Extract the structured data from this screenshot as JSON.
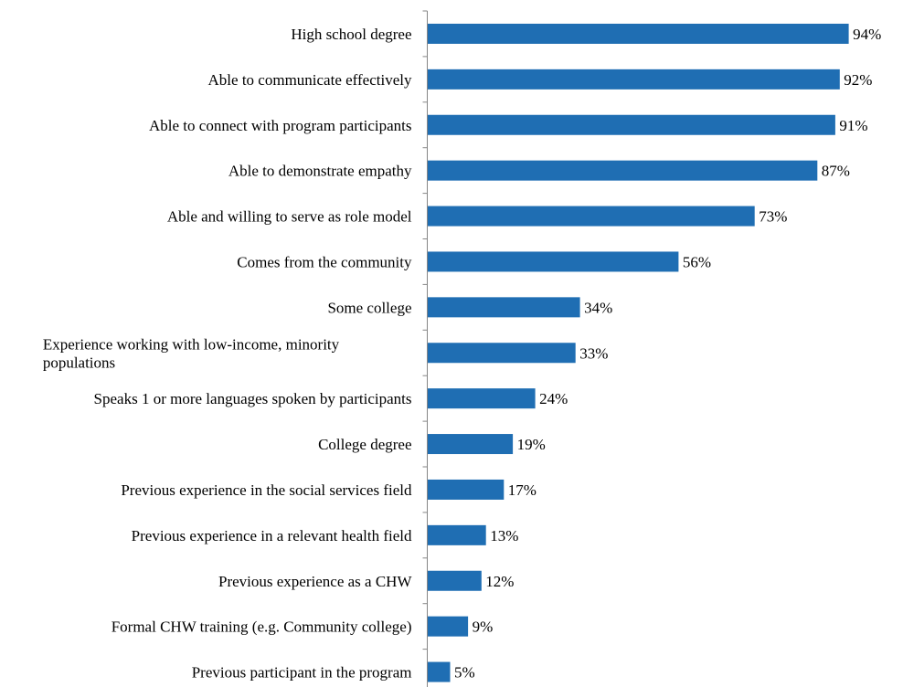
{
  "chart_data": {
    "type": "bar",
    "orientation": "horizontal",
    "title": "",
    "xlabel": "",
    "ylabel": "",
    "xlim": [
      0,
      100
    ],
    "value_suffix": "%",
    "grid": false,
    "legend": "none",
    "bar_color": "#1f6eb3",
    "categories": [
      [
        "High school degree"
      ],
      [
        "Able to communicate effectively"
      ],
      [
        "Able  to connect with program participants"
      ],
      [
        "Able to demonstrate empathy"
      ],
      [
        "Able and willing to serve as role model"
      ],
      [
        "Comes from the community"
      ],
      [
        "Some college"
      ],
      [
        "Experience working with low-income, minority",
        "populations"
      ],
      [
        "Speaks 1 or more languages spoken by participants"
      ],
      [
        "College degree"
      ],
      [
        "Previous experience in the social services field"
      ],
      [
        "Previous experience in a relevant health field"
      ],
      [
        "Previous experience as a CHW"
      ],
      [
        "Formal CHW training (e.g. Community college)"
      ],
      [
        "Previous participant in the program"
      ]
    ],
    "values": [
      94,
      92,
      91,
      87,
      73,
      56,
      34,
      33,
      24,
      19,
      17,
      13,
      12,
      9,
      5
    ],
    "value_labels": [
      "94%",
      "92%",
      "91%",
      "87%",
      "73%",
      "56%",
      "34%",
      "33%",
      "24%",
      "19%",
      "17%",
      "13%",
      "12%",
      "9%",
      "5%"
    ]
  }
}
